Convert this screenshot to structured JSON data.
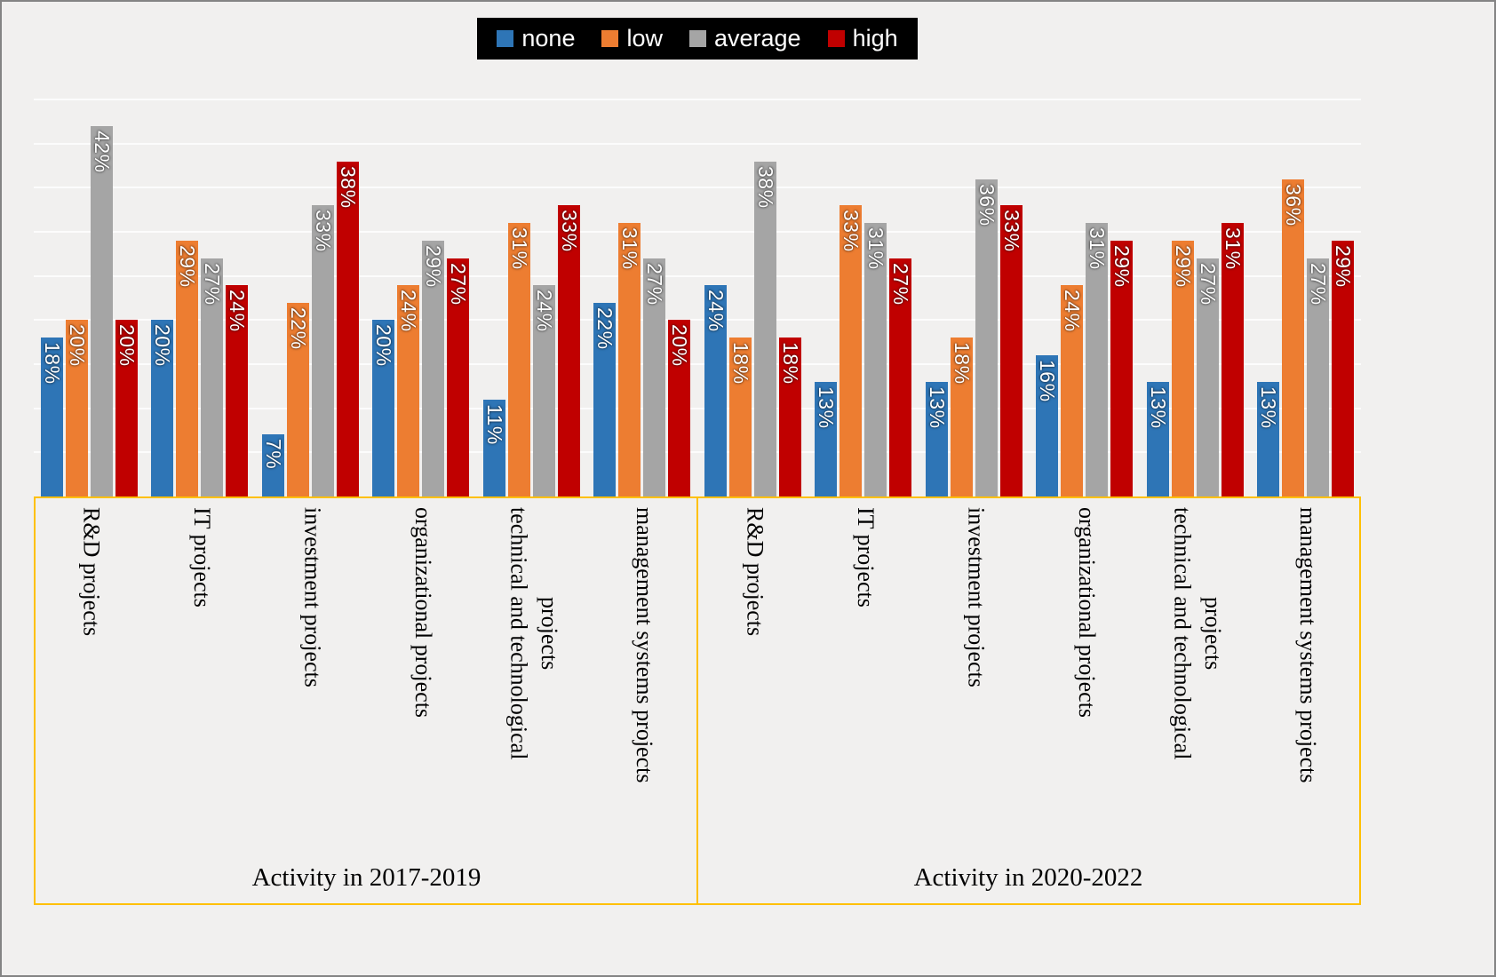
{
  "figure": {
    "background": "#F1F0EF",
    "border_color": "#848484"
  },
  "legend": {
    "background": "#000000",
    "text_color": "#FFFFFF"
  },
  "chart_data": {
    "type": "bar",
    "title": "",
    "value_suffix": "%",
    "ylim": [
      0,
      45
    ],
    "gridline_step_pct": 5,
    "grid": true,
    "legend_position": "top",
    "axis_frame_color": "#FFC000",
    "series_names": [
      "none",
      "low",
      "average",
      "high"
    ],
    "series_colors": [
      "#2E75B6",
      "#ED7D31",
      "#A5A5A5",
      "#C00000"
    ],
    "periods": [
      {
        "label": "Activity in 2017-2019",
        "categories": [
          {
            "label": "R&D projects",
            "label_lines": [
              "R&D projects"
            ],
            "values": [
              18,
              20,
              42,
              20
            ]
          },
          {
            "label": "IT projects",
            "label_lines": [
              "IT projects"
            ],
            "values": [
              20,
              29,
              27,
              24
            ]
          },
          {
            "label": "investment projects",
            "label_lines": [
              "investment projects"
            ],
            "values": [
              7,
              22,
              33,
              38
            ]
          },
          {
            "label": "organizational projects",
            "label_lines": [
              "organizational projects"
            ],
            "values": [
              20,
              24,
              29,
              27
            ]
          },
          {
            "label": "technical and technological projects",
            "label_lines": [
              "technical and technological",
              "projects"
            ],
            "values": [
              11,
              31,
              24,
              33
            ]
          },
          {
            "label": "management systems projects",
            "label_lines": [
              "management systems projects"
            ],
            "values": [
              22,
              31,
              27,
              20
            ]
          }
        ]
      },
      {
        "label": "Activity in 2020-2022",
        "categories": [
          {
            "label": "R&D projects",
            "label_lines": [
              "R&D projects"
            ],
            "values": [
              24,
              18,
              38,
              18
            ]
          },
          {
            "label": "IT projects",
            "label_lines": [
              "IT projects"
            ],
            "values": [
              13,
              33,
              31,
              27
            ]
          },
          {
            "label": "investment projects",
            "label_lines": [
              "investment projects"
            ],
            "values": [
              13,
              18,
              36,
              33
            ]
          },
          {
            "label": "organizational projects",
            "label_lines": [
              "organizational projects"
            ],
            "values": [
              16,
              24,
              31,
              29
            ]
          },
          {
            "label": "technical and technological projects",
            "label_lines": [
              "technical and technological",
              "projects"
            ],
            "values": [
              13,
              29,
              27,
              31
            ]
          },
          {
            "label": "management systems projects",
            "label_lines": [
              "management systems projects"
            ],
            "values": [
              13,
              36,
              27,
              29
            ]
          }
        ]
      }
    ]
  }
}
